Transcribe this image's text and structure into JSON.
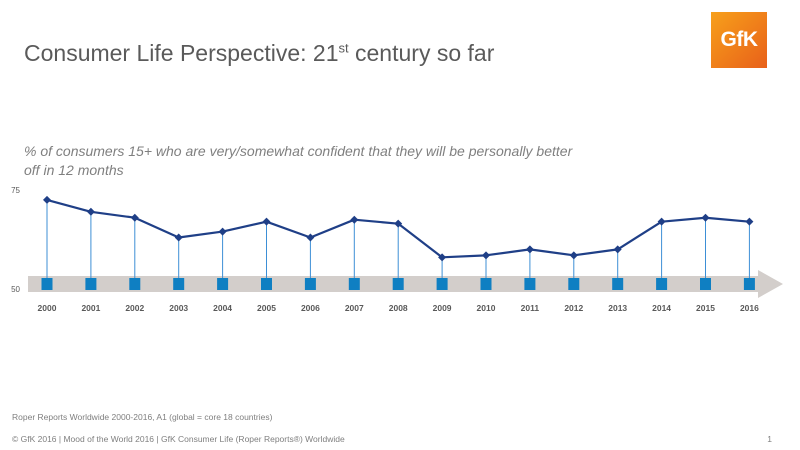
{
  "header": {
    "title_main": "Consumer Life Perspective: 21",
    "title_sup": "st",
    "title_tail": " century so far",
    "logo_text": "GfK"
  },
  "subtitle": "% of consumers 15+ who are very/somewhat confident that they will be personally better off in 12 months",
  "chart_data": {
    "type": "line",
    "title": "",
    "xlabel": "",
    "ylabel": "",
    "ylim": [
      50,
      75
    ],
    "y_ticks": [
      "75",
      "50"
    ],
    "grid": false,
    "legend": "none",
    "categories": [
      "2000",
      "2001",
      "2002",
      "2003",
      "2004",
      "2005",
      "2006",
      "2007",
      "2008",
      "2009",
      "2010",
      "2011",
      "2012",
      "2013",
      "2014",
      "2015",
      "2016"
    ],
    "series": [
      {
        "values": [
          72.5,
          69.5,
          68,
          63,
          64.5,
          67,
          63,
          67.5,
          66.5,
          58,
          58.5,
          60,
          58.5,
          60,
          67,
          68,
          67
        ]
      }
    ],
    "colors": {
      "line": "#1f3f87",
      "marker": "#1f3f87",
      "stem": "#3d8fd6",
      "timeline_square": "#0f7fc2",
      "timeline_arrow": "#d3cecb",
      "tick_label": "#595959"
    }
  },
  "footer": {
    "source": "Roper Reports Worldwide 2000-2016, A1 (global = core 18 countries)",
    "copyright": "© GfK 2016 | Mood of the World 2016 | GfK Consumer Life (Roper Reports®) Worldwide",
    "page_number": "1"
  }
}
